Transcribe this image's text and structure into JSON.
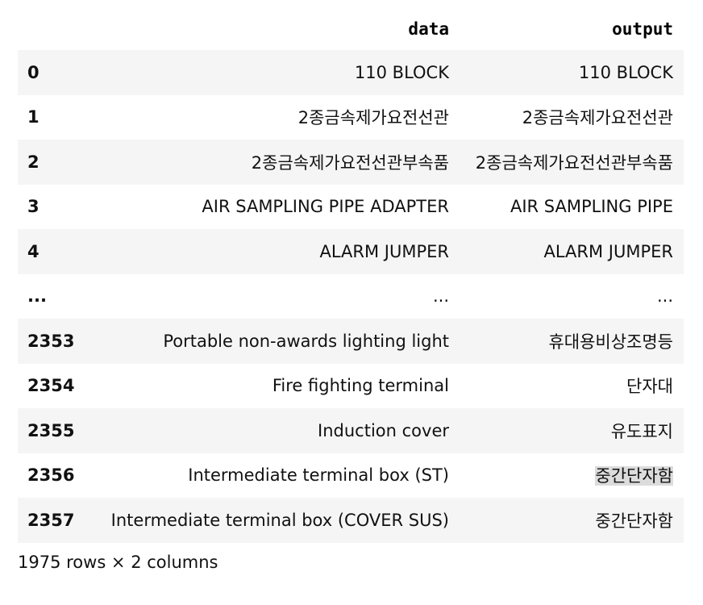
{
  "table": {
    "columns": [
      "",
      "data",
      "output"
    ],
    "rows": [
      {
        "index": "0",
        "data": "110 BLOCK",
        "output": "110 BLOCK"
      },
      {
        "index": "1",
        "data": "2종금속제가요전선관",
        "output": "2종금속제가요전선관"
      },
      {
        "index": "2",
        "data": "2종금속제가요전선관부속품",
        "output": "2종금속제가요전선관부속품"
      },
      {
        "index": "3",
        "data": "AIR SAMPLING PIPE ADAPTER",
        "output": "AIR SAMPLING PIPE"
      },
      {
        "index": "4",
        "data": "ALARM JUMPER",
        "output": "ALARM JUMPER"
      },
      {
        "index": "...",
        "data": "...",
        "output": "..."
      },
      {
        "index": "2353",
        "data": "Portable non-awards lighting light",
        "output": "휴대용비상조명등"
      },
      {
        "index": "2354",
        "data": "Fire fighting terminal",
        "output": "단자대"
      },
      {
        "index": "2355",
        "data": "Induction cover",
        "output": "유도표지"
      },
      {
        "index": "2356",
        "data": "Intermediate terminal box (ST)",
        "output": "중간단자함",
        "output_highlighted": true
      },
      {
        "index": "2357",
        "data": "Intermediate terminal box (COVER SUS)",
        "output": "중간단자함"
      }
    ]
  },
  "shape_text": "1975 rows × 2 columns"
}
